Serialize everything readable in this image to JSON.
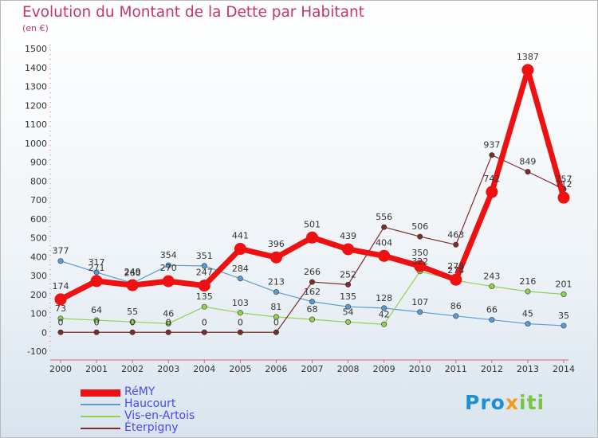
{
  "title": "Evolution du Montant de la Dette par Habitant",
  "unit": "(en €)",
  "logo": {
    "text": "Proxiti",
    "letters": [
      {
        "ch": "P",
        "color": "#1e8fd6"
      },
      {
        "ch": "r",
        "color": "#1e8fd6"
      },
      {
        "ch": "o",
        "color": "#1e8fd6"
      },
      {
        "ch": "x",
        "color": "#f29b1d"
      },
      {
        "ch": "i",
        "color": "#7cc243"
      },
      {
        "ch": "t",
        "color": "#7cc243"
      },
      {
        "ch": "i",
        "color": "#7cc243"
      }
    ]
  },
  "chart_data": {
    "type": "line",
    "title": "Evolution du Montant de la Dette par Habitant",
    "ylabel": "(en €)",
    "categories": [
      "2000",
      "2001",
      "2002",
      "2003",
      "2004",
      "2005",
      "2006",
      "2007",
      "2008",
      "2009",
      "2010",
      "2011",
      "2012",
      "2013",
      "2014"
    ],
    "ylim": [
      -100,
      1500
    ],
    "yticks": [
      -100,
      0,
      100,
      200,
      300,
      400,
      500,
      600,
      700,
      800,
      900,
      1000,
      1100,
      1200,
      1300,
      1400,
      1500
    ],
    "grid": false,
    "legend_position": "bottom-left",
    "series": [
      {
        "name": "RéMY",
        "color": "#ee1111",
        "emphasis": true,
        "values": [
          174,
          271,
          249,
          270,
          247,
          441,
          396,
          501,
          439,
          404,
          350,
          278,
          742,
          1387,
          712
        ]
      },
      {
        "name": "Haucourt",
        "color": "#5b9bd5",
        "values": [
          377,
          317,
          260,
          354,
          351,
          284,
          213,
          162,
          135,
          128,
          107,
          86,
          66,
          45,
          35
        ]
      },
      {
        "name": "Vis-en-Artois",
        "color": "#92d050",
        "values": [
          73,
          64,
          55,
          46,
          135,
          103,
          81,
          68,
          54,
          42,
          322,
          274,
          243,
          216,
          201
        ]
      },
      {
        "name": "Éterpigny",
        "color": "#7b2c2c",
        "values": [
          0,
          0,
          0,
          0,
          0,
          0,
          0,
          266,
          252,
          556,
          506,
          463,
          937,
          849,
          757
        ]
      }
    ]
  }
}
